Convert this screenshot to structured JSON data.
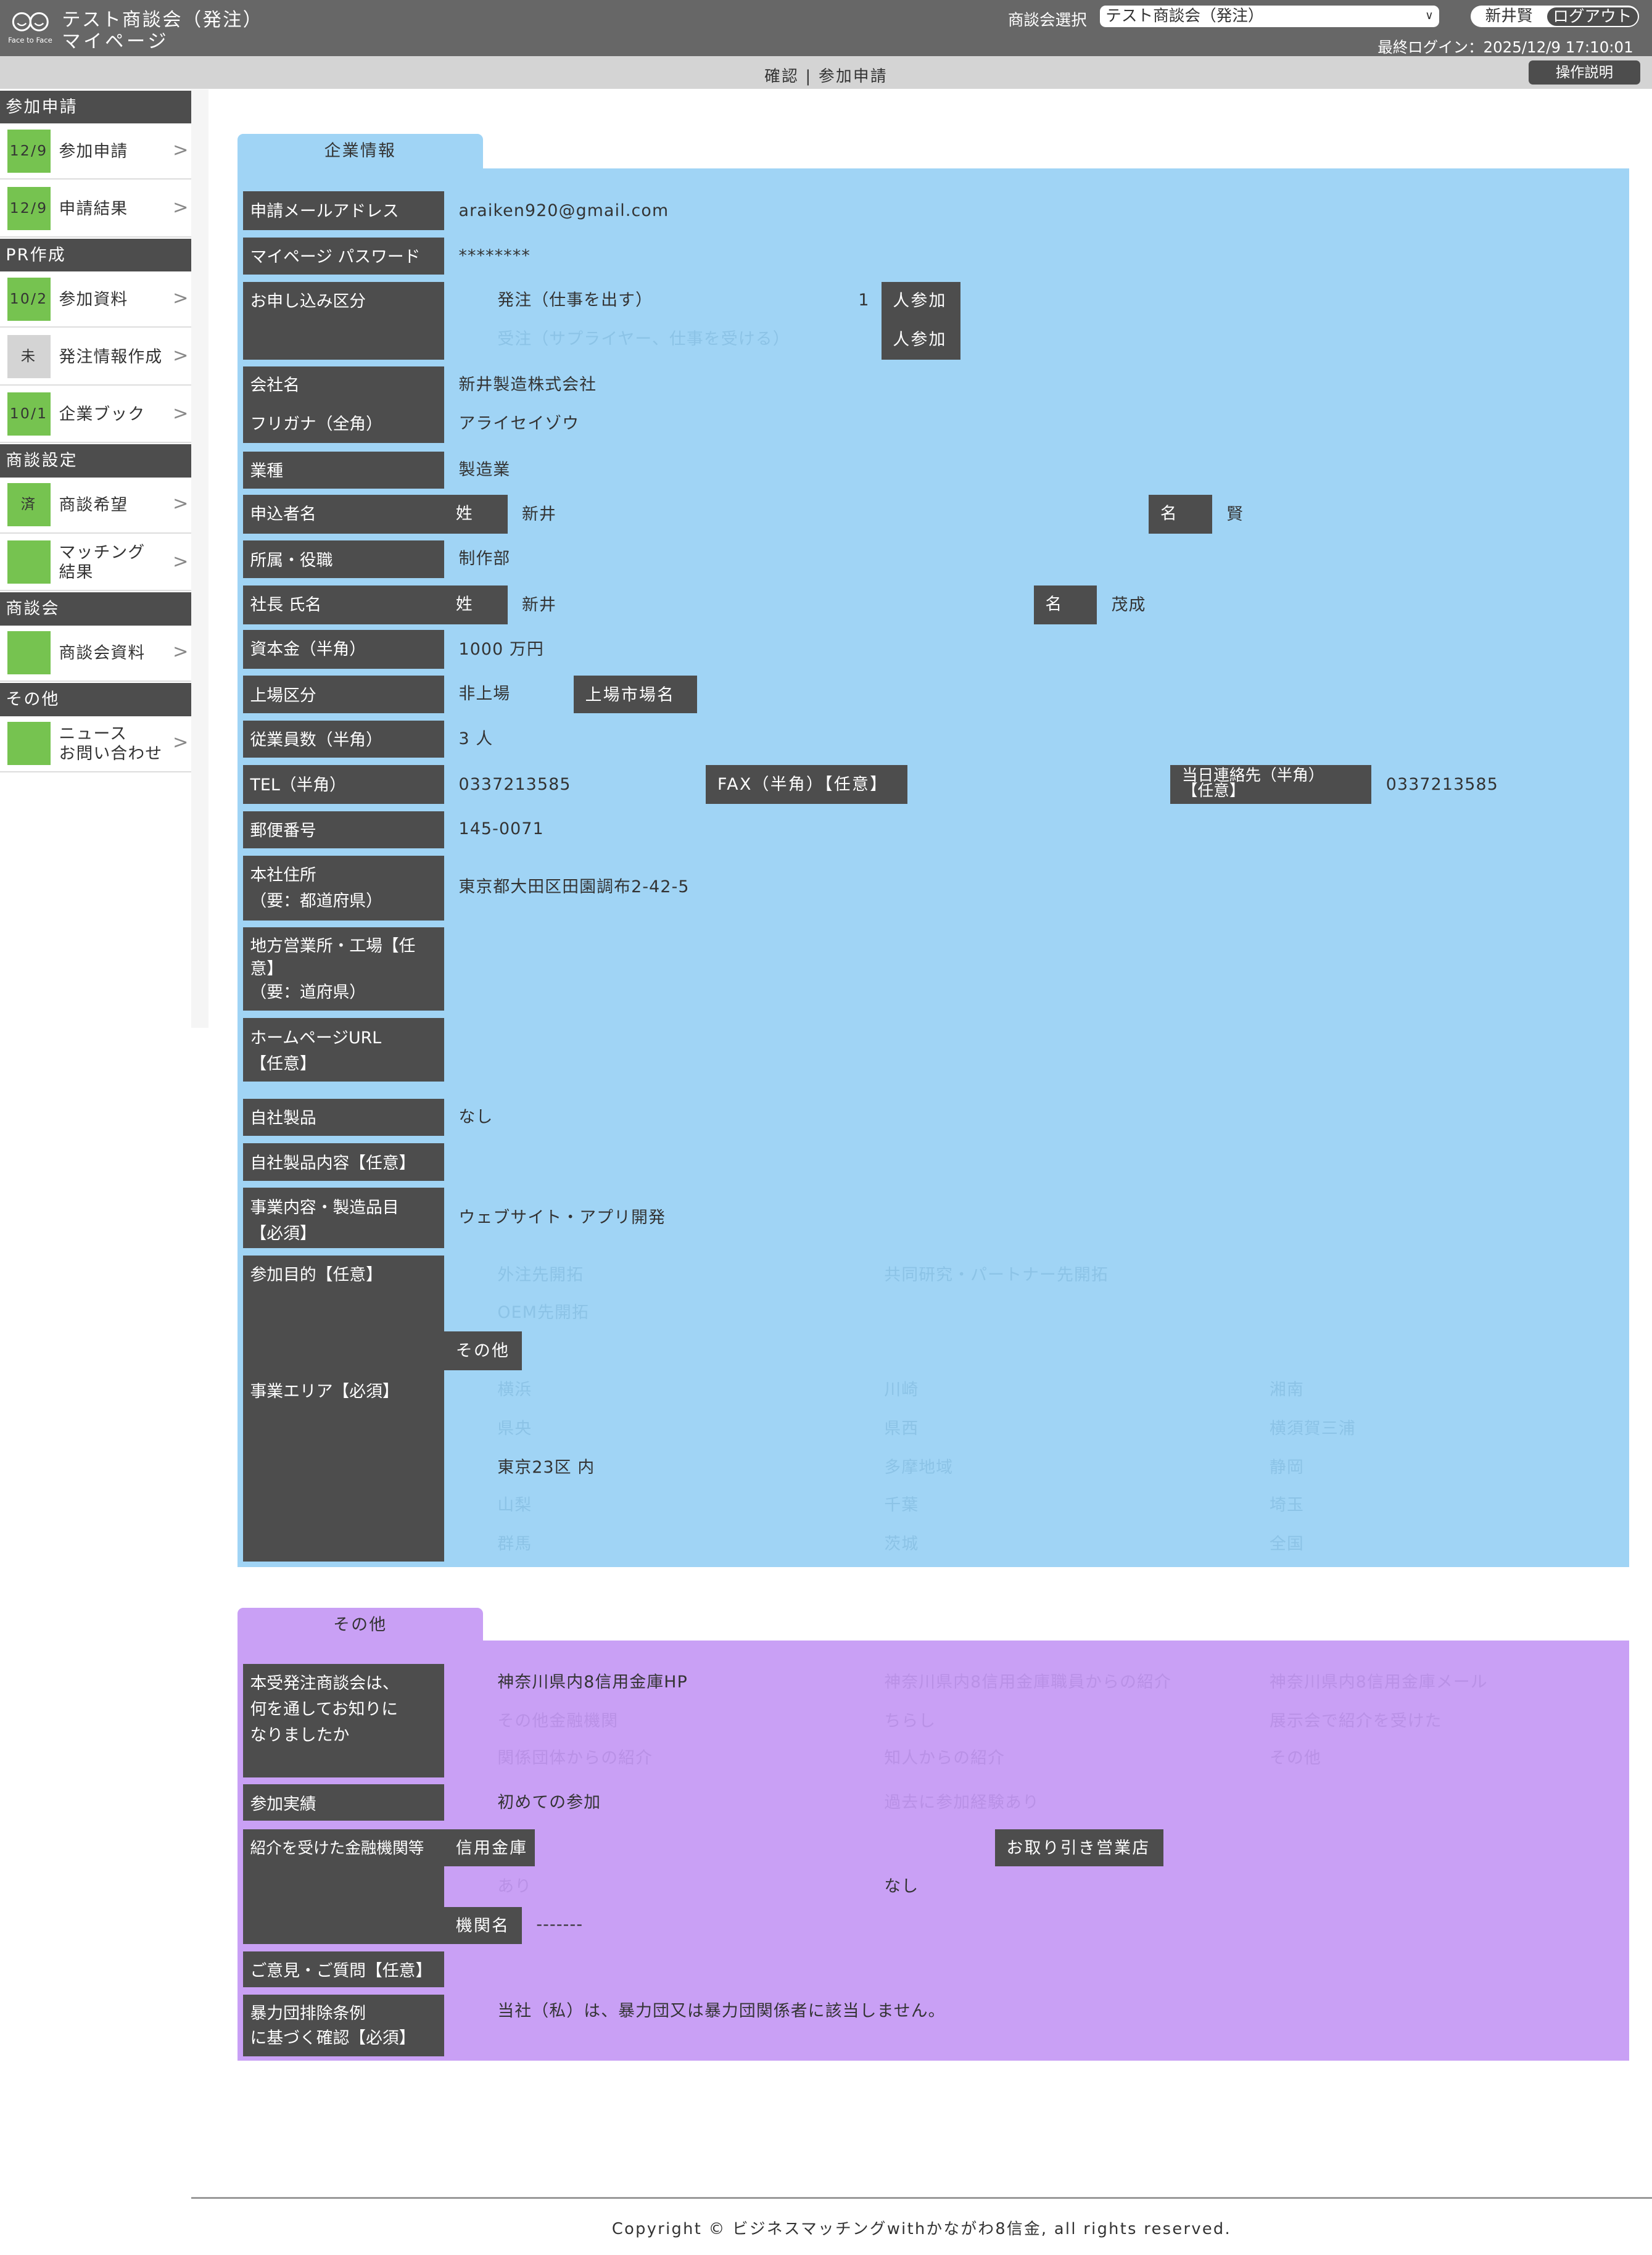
{
  "header": {
    "logo_text": "Face to Face",
    "title": "テスト商談会（発注）",
    "subtitle": "マイページ",
    "event_select_label": "商談会選択",
    "event_select_value": "テスト商談会（発注）",
    "user_name": "新井賢",
    "logout": "ログアウト",
    "last_login": "最終ログイン：2025/12/9 17:10:01"
  },
  "subbar": {
    "breadcrumb": "確認 | 参加申請",
    "help": "操作説明"
  },
  "sidebar": {
    "sections": [
      {
        "title": "参加申請",
        "items": [
          {
            "badge": "12/9",
            "label": "参加申請"
          },
          {
            "badge": "12/9",
            "label": "申請結果"
          }
        ]
      },
      {
        "title": "PR作成",
        "items": [
          {
            "badge": "10/2",
            "label": "参加資料"
          },
          {
            "badge": "未",
            "label": "発注情報作成"
          },
          {
            "badge": "10/1",
            "label": "企業ブック"
          }
        ]
      },
      {
        "title": "商談設定",
        "items": [
          {
            "badge": "済",
            "label": "商談希望"
          },
          {
            "badge": "",
            "label": "マッチング\n結果"
          }
        ]
      },
      {
        "title": "商談会",
        "items": [
          {
            "badge": "",
            "label": "商談会資料"
          }
        ]
      },
      {
        "title": "その他",
        "items": [
          {
            "badge": "",
            "label": "ニュース\nお問い合わせ"
          }
        ]
      }
    ],
    "badge_green": "#76c350",
    "badge_gray": "#d4d4d4"
  },
  "company": {
    "tab": "企業情報",
    "color": "#a0d4f5",
    "email_label": "申請メールアドレス",
    "email": "araiken920@gmail.com",
    "password_label": "マイページ パスワード",
    "password": "********",
    "type_label": "お申し込み区分",
    "type_order": "発注（仕事を出す）",
    "type_order_count": "1",
    "type_supply": "受注（サプライヤー、仕事を受ける）",
    "persons": "人参加",
    "company_label": "会社名",
    "company": "新井製造株式会社",
    "kana_label": "フリガナ（全角）",
    "kana": "アライセイゾウ",
    "industry_label": "業種",
    "industry": "製造業",
    "applicant_label": "申込者名",
    "sei": "姓",
    "mei": "名",
    "applicant_sei": "新井",
    "applicant_mei": "賢",
    "dept_label": "所属・役職",
    "dept": "制作部",
    "president_label": "社長 氏名",
    "president_sei": "新井",
    "president_mei": "茂成",
    "capital_label": "資本金（半角）",
    "capital": "1000 万円",
    "listing_label": "上場区分",
    "listing": "非上場",
    "market_label": "上場市場名",
    "employees_label": "従業員数（半角）",
    "employees": "3 人",
    "tel_label": "TEL（半角）",
    "tel": "0337213585",
    "fax_label": "FAX（半角）【任意】",
    "sameday_label": "当日連絡先（半角）\n【任意】",
    "sameday": "0337213585",
    "zip_label": "郵便番号",
    "zip": "145-0071",
    "address_label": "本社住所\n（要：都道府県）",
    "address": "東京都大田区田園調布2-42-5",
    "branch_label": "地方営業所・工場【任意】\n（要：道府県）",
    "url_label": "ホームページURL\n【任意】",
    "product_label": "自社製品",
    "product": "なし",
    "product_detail_label": "自社製品内容【任意】",
    "business_label": "事業内容・製造品目\n【必須】",
    "business": "ウェブサイト・アプリ開発",
    "purpose_label": "参加目的【任意】",
    "purpose_options": [
      "外注先開拓",
      "共同研究・パートナー先開拓",
      "OEM先開拓"
    ],
    "purpose_other": "その他",
    "area_label": "事業エリア【必須】",
    "area_options": [
      "横浜",
      "川崎",
      "湘南",
      "県央",
      "県西",
      "横須賀三浦",
      "東京23区 内",
      "多摩地域",
      "静岡",
      "山梨",
      "千葉",
      "埼玉",
      "群馬",
      "茨城",
      "全国"
    ],
    "area_selected": "東京23区 内"
  },
  "other": {
    "tab": "その他",
    "color": "#c9a0f5",
    "source_label": "本受発注商談会は、\n何を通してお知りに\nなりましたか",
    "source_options": [
      "神奈川県内8信用金庫HP",
      "神奈川県内8信用金庫職員からの紹介",
      "神奈川県内8信用金庫メール",
      "その他金融機関",
      "ちらし",
      "展示会で紹介を受けた",
      "関係団体からの紹介",
      "知人からの紹介",
      "その他"
    ],
    "source_selected": "神奈川県内8信用金庫HP",
    "history_label": "参加実績",
    "history_options": [
      "初めての参加",
      "過去に参加経験あり"
    ],
    "history_selected": "初めての参加",
    "bank_label": "紹介を受けた金融機関等",
    "bank_type": "信用金庫",
    "branch_label": "お取り引き営業店",
    "bank_yes": "あり",
    "bank_no": "なし",
    "bank_selected": "なし",
    "org_label": "機関名",
    "org_value": "-------",
    "opinion_label": "ご意見・ご質問【任意】",
    "anti_label": "暴力団排除条例\nに基づく確認【必須】",
    "anti_text": "当社（私）は、暴力団又は暴力団関係者に該当しません。"
  },
  "footer": {
    "copyright": "Copyright © ビジネスマッチングwithかながわ8信金, all rights reserved."
  }
}
